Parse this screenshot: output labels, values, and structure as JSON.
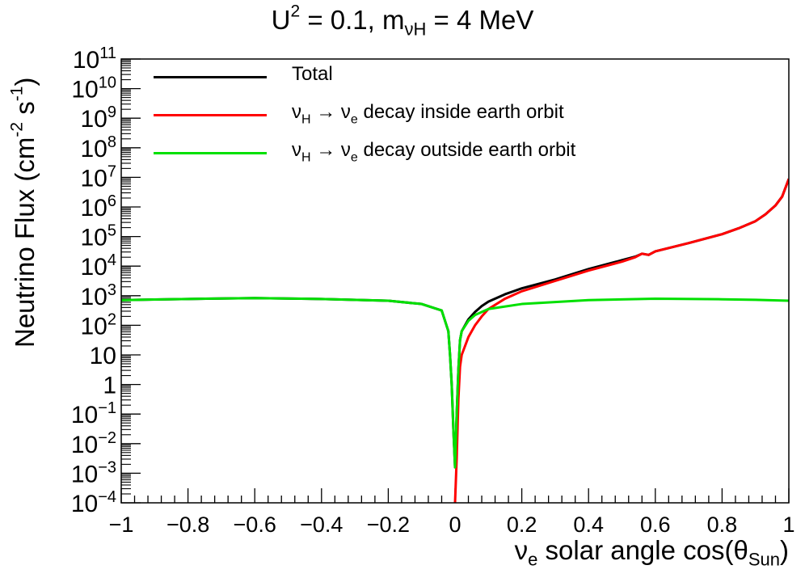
{
  "chart_data": {
    "type": "line",
    "title": "U² = 0.1, m_νH = 4 MeV",
    "title_parts": {
      "main": "U",
      "sup": "2",
      "mid": " = 0.1, m",
      "sub": "νH",
      "end": " = 4 MeV"
    },
    "xlabel": "ν_e solar angle cos(θ_Sun)",
    "xlabel_parts": {
      "nu": "ν",
      "nu_sub": "e",
      "text": " solar angle cos(θ",
      "theta_sub": "Sun",
      "end": ")"
    },
    "ylabel": "Neutrino Flux (cm⁻² s⁻¹)",
    "ylabel_parts": {
      "text": "Neutrino Flux (cm",
      "sup1": "-2",
      "mid": " s",
      "sup2": "-1",
      "end": ")"
    },
    "xlim": [
      -1,
      1
    ],
    "ylim_log10": [
      -4,
      11
    ],
    "y_scale": "log",
    "x_tick_labels": [
      {
        "value": -1,
        "text": "−1"
      },
      {
        "value": -0.8,
        "text": "−0.8"
      },
      {
        "value": -0.6,
        "text": "−0.6"
      },
      {
        "value": -0.4,
        "text": "−0.4"
      },
      {
        "value": -0.2,
        "text": "−0.2"
      },
      {
        "value": 0,
        "text": "0"
      },
      {
        "value": 0.2,
        "text": "0.2"
      },
      {
        "value": 0.4,
        "text": "0.4"
      },
      {
        "value": 0.6,
        "text": "0.6"
      },
      {
        "value": 0.8,
        "text": "0.8"
      },
      {
        "value": 1,
        "text": "1"
      }
    ],
    "y_tick_labels": [
      {
        "exp": -4,
        "base": "10",
        "sup": "−4"
      },
      {
        "exp": -3,
        "base": "10",
        "sup": "−3"
      },
      {
        "exp": -2,
        "base": "10",
        "sup": "−2"
      },
      {
        "exp": -1,
        "base": "10",
        "sup": "−1"
      },
      {
        "exp": 0,
        "base": "1",
        "sup": ""
      },
      {
        "exp": 1,
        "base": "10",
        "sup": ""
      },
      {
        "exp": 2,
        "base": "10",
        "sup": "2"
      },
      {
        "exp": 3,
        "base": "10",
        "sup": "3"
      },
      {
        "exp": 4,
        "base": "10",
        "sup": "4"
      },
      {
        "exp": 5,
        "base": "10",
        "sup": "5"
      },
      {
        "exp": 6,
        "base": "10",
        "sup": "6"
      },
      {
        "exp": 7,
        "base": "10",
        "sup": "7"
      },
      {
        "exp": 8,
        "base": "10",
        "sup": "8"
      },
      {
        "exp": 9,
        "base": "10",
        "sup": "9"
      },
      {
        "exp": 10,
        "base": "10",
        "sup": "10"
      },
      {
        "exp": 11,
        "base": "10",
        "sup": "11"
      }
    ],
    "legend_position": "top-left",
    "series": [
      {
        "name": "Total",
        "color": "#000000",
        "points_log10": [
          [
            -1.0,
            2.85
          ],
          [
            -0.9,
            2.87
          ],
          [
            -0.8,
            2.89
          ],
          [
            -0.6,
            2.92
          ],
          [
            -0.4,
            2.89
          ],
          [
            -0.2,
            2.83
          ],
          [
            -0.1,
            2.72
          ],
          [
            -0.04,
            2.5
          ],
          [
            -0.02,
            1.8
          ],
          [
            -0.015,
            1.0
          ],
          [
            -0.01,
            0.0
          ],
          [
            -0.005,
            -1.5
          ],
          [
            0.0,
            -2.8
          ],
          [
            0.005,
            -1.0
          ],
          [
            0.01,
            0.5
          ],
          [
            0.015,
            1.5
          ],
          [
            0.02,
            1.8
          ],
          [
            0.04,
            2.2
          ],
          [
            0.06,
            2.45
          ],
          [
            0.08,
            2.65
          ],
          [
            0.1,
            2.8
          ],
          [
            0.15,
            3.05
          ],
          [
            0.2,
            3.25
          ],
          [
            0.3,
            3.55
          ],
          [
            0.4,
            3.9
          ],
          [
            0.5,
            4.2
          ],
          [
            0.54,
            4.32
          ],
          [
            0.56,
            4.42
          ],
          [
            0.58,
            4.38
          ],
          [
            0.6,
            4.5
          ],
          [
            0.7,
            4.78
          ],
          [
            0.8,
            5.08
          ],
          [
            0.85,
            5.28
          ],
          [
            0.9,
            5.52
          ],
          [
            0.93,
            5.75
          ],
          [
            0.96,
            6.05
          ],
          [
            0.98,
            6.35
          ],
          [
            1.0,
            6.95
          ]
        ]
      },
      {
        "name": "νH → νe decay inside earth orbit",
        "color": "#ff0000",
        "points_log10": [
          [
            0.0,
            -4.0
          ],
          [
            0.005,
            -2.5
          ],
          [
            0.01,
            -0.5
          ],
          [
            0.015,
            0.6
          ],
          [
            0.02,
            1.0
          ],
          [
            0.04,
            1.6
          ],
          [
            0.06,
            2.0
          ],
          [
            0.08,
            2.3
          ],
          [
            0.1,
            2.55
          ],
          [
            0.15,
            2.9
          ],
          [
            0.2,
            3.15
          ],
          [
            0.3,
            3.5
          ],
          [
            0.4,
            3.85
          ],
          [
            0.5,
            4.15
          ],
          [
            0.54,
            4.3
          ],
          [
            0.56,
            4.42
          ],
          [
            0.58,
            4.38
          ],
          [
            0.6,
            4.5
          ],
          [
            0.7,
            4.78
          ],
          [
            0.8,
            5.08
          ],
          [
            0.85,
            5.28
          ],
          [
            0.9,
            5.52
          ],
          [
            0.93,
            5.75
          ],
          [
            0.96,
            6.05
          ],
          [
            0.98,
            6.35
          ],
          [
            1.0,
            6.95
          ]
        ]
      },
      {
        "name": "νH → νe decay outside earth orbit",
        "color": "#00e000",
        "points_log10": [
          [
            -1.0,
            2.85
          ],
          [
            -0.9,
            2.87
          ],
          [
            -0.8,
            2.89
          ],
          [
            -0.6,
            2.92
          ],
          [
            -0.4,
            2.89
          ],
          [
            -0.2,
            2.83
          ],
          [
            -0.1,
            2.72
          ],
          [
            -0.04,
            2.5
          ],
          [
            -0.02,
            1.8
          ],
          [
            -0.015,
            1.0
          ],
          [
            -0.01,
            0.0
          ],
          [
            -0.005,
            -1.5
          ],
          [
            0.0,
            -2.8
          ],
          [
            0.005,
            -1.0
          ],
          [
            0.01,
            0.5
          ],
          [
            0.015,
            1.5
          ],
          [
            0.02,
            1.8
          ],
          [
            0.04,
            2.15
          ],
          [
            0.06,
            2.35
          ],
          [
            0.1,
            2.55
          ],
          [
            0.2,
            2.72
          ],
          [
            0.4,
            2.85
          ],
          [
            0.6,
            2.9
          ],
          [
            0.8,
            2.88
          ],
          [
            0.9,
            2.86
          ],
          [
            1.0,
            2.83
          ]
        ]
      }
    ],
    "legend": [
      {
        "label_prefix": "Total",
        "sub1": "",
        "arrow": "",
        "nu2": "",
        "sub2": "",
        "suffix": ""
      },
      {
        "label_prefix": "ν",
        "sub1": "H",
        "arrow": " → ",
        "nu2": "ν",
        "sub2": "e",
        "suffix": " decay inside earth orbit"
      },
      {
        "label_prefix": "ν",
        "sub1": "H",
        "arrow": " → ",
        "nu2": "ν",
        "sub2": "e",
        "suffix": " decay outside earth orbit"
      }
    ]
  }
}
